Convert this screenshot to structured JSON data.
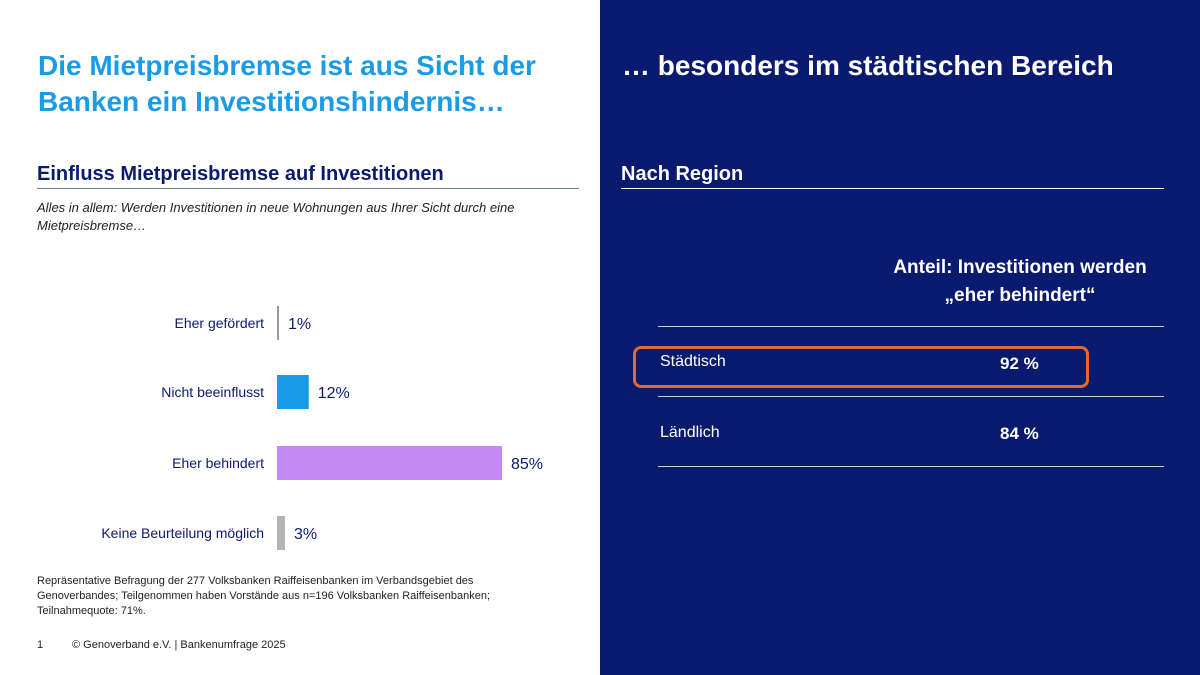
{
  "left": {
    "title": "Die Mietpreisbremse ist aus Sicht der Banken ein Investitionshindernis…",
    "subheading": "Einfluss Mietpreisbremse auf Investitionen",
    "question": "Alles in allem: Werden Investitionen in neue Wohnungen aus Ihrer Sicht durch eine Mietpreisbremse…",
    "footnote": "Repräsentative Befragung der 277 Volksbanken Raiffeisenbanken im Verbandsgebiet des Genoverbandes; Teilgenommen haben Vorstände aus n=196 Volksbanken Raiffeisenbanken; Teilnahmequote: 71%.",
    "page_number": "1",
    "copyright": "© Genoverband e.V. | Bankenumfrage 2025"
  },
  "chart_data": {
    "type": "bar",
    "orientation": "horizontal",
    "categories": [
      "Eher gefördert",
      "Nicht beeinflusst",
      "Eher behindert",
      "Keine Beurteilung möglich"
    ],
    "values": [
      1,
      12,
      85,
      3
    ],
    "value_labels": [
      "1%",
      "12%",
      "85%",
      "3%"
    ],
    "colors": [
      "#9a9a9a",
      "#1a9be6",
      "#c589f5",
      "#b4b4b4"
    ],
    "unit": "%",
    "xlim": [
      0,
      100
    ],
    "title": "",
    "xlabel": "",
    "ylabel": "",
    "grid": false
  },
  "right": {
    "title": "… besonders im städtischen Bereich",
    "subheading": "Nach Region",
    "table_header": "Anteil: Investitionen werden „eher behindert“",
    "rows": [
      {
        "label": "Städtisch",
        "value": "92 %"
      },
      {
        "label": "Ländlich",
        "value": "84 %"
      }
    ],
    "highlight_color": "#e8672c"
  },
  "colors": {
    "accent_blue": "#1a9be6",
    "navy": "#0a1a6e"
  }
}
